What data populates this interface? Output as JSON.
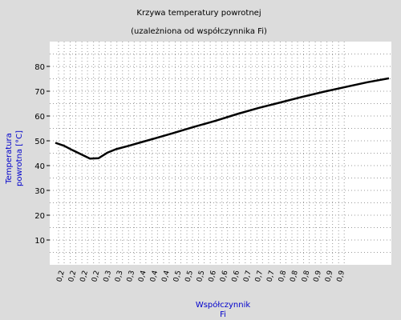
{
  "chart_data": {
    "type": "line",
    "title": "Krzywa temperatury powrotnej",
    "subtitle": "(uzależniona od współczynnika Fi)",
    "ylabel_lines": [
      "Temperatura",
      "powrotna [°C]"
    ],
    "xlabel_lines": [
      "Współczynnik",
      "Fi"
    ],
    "ylim": [
      0,
      90
    ],
    "yticks": [
      10,
      20,
      30,
      40,
      50,
      60,
      70,
      80
    ],
    "grid": true,
    "xtick_labels": [
      "0,2",
      "0,2",
      "0,2",
      "0,2",
      "0,3",
      "0,3",
      "0,3",
      "0,4",
      "0,4",
      "0,4",
      "0,5",
      "0,5",
      "0,5",
      "0,6",
      "0,6",
      "0,6",
      "0,7",
      "0,7",
      "0,7",
      "0,8",
      "0,8",
      "0,8",
      "0,9",
      "0,9",
      "0,9"
    ],
    "series": [
      {
        "x": [
          0.18,
          0.2,
          0.22,
          0.24,
          0.26,
          0.28,
          0.3,
          0.32,
          0.35,
          0.38,
          0.41,
          0.45,
          0.5,
          0.55,
          0.6,
          0.65,
          0.7,
          0.75,
          0.8,
          0.85,
          0.9,
          0.95
        ],
        "y": [
          49.2,
          48.0,
          46.2,
          44.5,
          42.8,
          43.0,
          45.2,
          46.6,
          48.0,
          49.5,
          51.0,
          53.0,
          55.6,
          58.1,
          60.8,
          63.3,
          65.5,
          67.7,
          69.8,
          71.7,
          73.6,
          75.2
        ]
      }
    ]
  }
}
